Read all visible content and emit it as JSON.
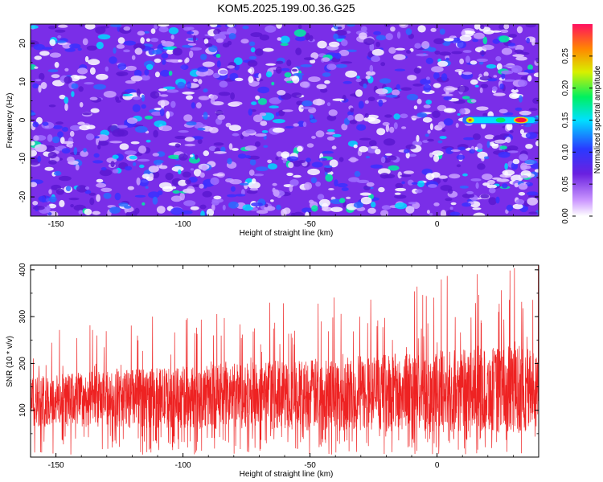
{
  "title": "KOM5.2025.199.00.36.G25",
  "chart_data": [
    {
      "type": "heatmap",
      "xlabel": "Height of straight line (km)",
      "ylabel": "Frequency (Hz)",
      "xlim": [
        -160,
        40
      ],
      "ylim": [
        -25,
        25
      ],
      "xticks": [
        -150,
        -100,
        -50,
        0
      ],
      "yticks": [
        20,
        10,
        0,
        -10,
        -20
      ],
      "colorbar": {
        "label": "Normalized spectral amplitude",
        "range": [
          0,
          0.3
        ],
        "ticks": [
          "0.00",
          "0.05",
          "0.10",
          "0.15",
          "0.20",
          "0.25"
        ]
      },
      "feature": {
        "description": "",
        "frequency": 0,
        "x_start": 10,
        "x_end": 40,
        "peak_x": 33,
        "peak_value": 0.3
      }
    },
    {
      "type": "line",
      "xlabel": "Height of straight line (km)",
      "ylabel": "SNR (10 * v/v)",
      "xlim": [
        -160,
        40
      ],
      "ylim": [
        0,
        410
      ],
      "xticks": [
        -150,
        -100,
        -50,
        0
      ],
      "yticks": [
        400,
        300,
        200,
        100
      ],
      "series": [
        {
          "color": "#ee2222",
          "baseline": 120,
          "max": 410
        }
      ]
    }
  ],
  "colors": {
    "line": "#ee2222",
    "heat_background": "#6a20e0"
  }
}
